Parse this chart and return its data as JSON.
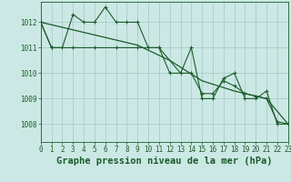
{
  "background_color": "#cce8e4",
  "grid_color": "#a8cccc",
  "line_color": "#1a5c2a",
  "title": "Graphe pression niveau de la mer (hPa)",
  "xlim": [
    0,
    23
  ],
  "ylim": [
    1007.3,
    1012.8
  ],
  "yticks": [
    1008,
    1009,
    1010,
    1011,
    1012
  ],
  "xtick_labels": [
    "0",
    "1",
    "2",
    "3",
    "4",
    "5",
    "6",
    "7",
    "8",
    "9",
    "10",
    "11",
    "12",
    "13",
    "14",
    "15",
    "16",
    "17",
    "18",
    "19",
    "20",
    "21",
    "22",
    "23"
  ],
  "series1_x": [
    0,
    1,
    2,
    3,
    4,
    5,
    6,
    7,
    8,
    9,
    10,
    11,
    12,
    13,
    14,
    15,
    16,
    17,
    18,
    19,
    20,
    21,
    22,
    23
  ],
  "series1_y": [
    1012.0,
    1011.0,
    1011.0,
    1012.3,
    1012.0,
    1012.0,
    1012.6,
    1012.0,
    1012.0,
    1012.0,
    1011.0,
    1011.0,
    1010.0,
    1010.0,
    1011.0,
    1009.0,
    1009.0,
    1009.8,
    1010.0,
    1009.0,
    1009.0,
    1009.3,
    1008.0,
    1008.0
  ],
  "series2_x": [
    0,
    1,
    3,
    5,
    7,
    9,
    11,
    13,
    14,
    15,
    16,
    17,
    18,
    19,
    20,
    21,
    22,
    23
  ],
  "series2_y": [
    1012.0,
    1011.0,
    1011.0,
    1011.0,
    1011.0,
    1011.0,
    1011.0,
    1010.0,
    1010.0,
    1009.2,
    1009.2,
    1009.7,
    1009.5,
    1009.2,
    1009.1,
    1009.0,
    1008.1,
    1008.0
  ],
  "series3_x": [
    0,
    3,
    6,
    9,
    12,
    15,
    18,
    21,
    23
  ],
  "series3_y": [
    1012.0,
    1011.7,
    1011.4,
    1011.1,
    1010.5,
    1009.7,
    1009.3,
    1009.0,
    1008.0
  ],
  "title_fontsize": 7.5,
  "tick_fontsize": 5.5
}
